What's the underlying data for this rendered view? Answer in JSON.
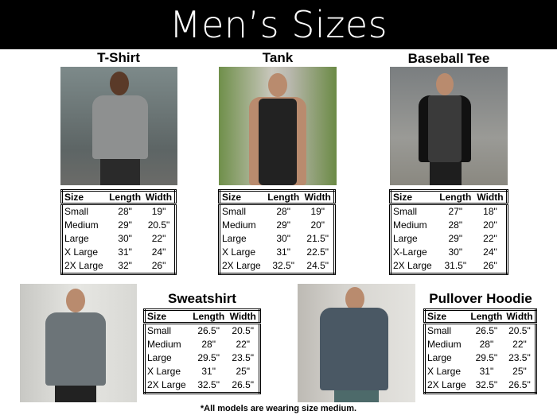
{
  "header": {
    "title": "Men’s Sizes"
  },
  "columns": [
    "Size",
    "Length",
    "Width"
  ],
  "products": [
    {
      "name": "T-Shirt",
      "rows": [
        [
          "Small",
          "28\"",
          "19\""
        ],
        [
          "Medium",
          "29\"",
          "20.5\""
        ],
        [
          "Large",
          "30\"",
          "22\""
        ],
        [
          "X Large",
          "31\"",
          "24\""
        ],
        [
          "2X Large",
          "32\"",
          "26\""
        ]
      ]
    },
    {
      "name": "Tank",
      "rows": [
        [
          "Small",
          "28\"",
          "19\""
        ],
        [
          "Medium",
          "29\"",
          "20\""
        ],
        [
          "Large",
          "30\"",
          "21.5\""
        ],
        [
          "X Large",
          "31\"",
          "22.5\""
        ],
        [
          "2X Large",
          "32.5\"",
          "24.5\""
        ]
      ]
    },
    {
      "name": "Baseball Tee",
      "rows": [
        [
          "Small",
          "27\"",
          "18\""
        ],
        [
          "Medium",
          "28\"",
          "20\""
        ],
        [
          "Large",
          "29\"",
          "22\""
        ],
        [
          "X-Large",
          "30\"",
          "24\""
        ],
        [
          "2X Large",
          "31.5\"",
          "26\""
        ]
      ]
    },
    {
      "name": "Sweatshirt",
      "rows": [
        [
          "Small",
          "26.5\"",
          "20.5\""
        ],
        [
          "Medium",
          "28\"",
          "22\""
        ],
        [
          "Large",
          "29.5\"",
          "23.5\""
        ],
        [
          "X Large",
          "31\"",
          "25\""
        ],
        [
          "2X Large",
          "32.5\"",
          "26.5\""
        ]
      ]
    },
    {
      "name": "Pullover Hoodie",
      "rows": [
        [
          "Small",
          "26.5\"",
          "20.5\""
        ],
        [
          "Medium",
          "28\"",
          "22\""
        ],
        [
          "Large",
          "29.5\"",
          "23.5\""
        ],
        [
          "X Large",
          "31\"",
          "25\""
        ],
        [
          "2X Large",
          "32.5\"",
          "26.5\""
        ]
      ]
    }
  ],
  "footnote": "*All models are wearing size medium."
}
